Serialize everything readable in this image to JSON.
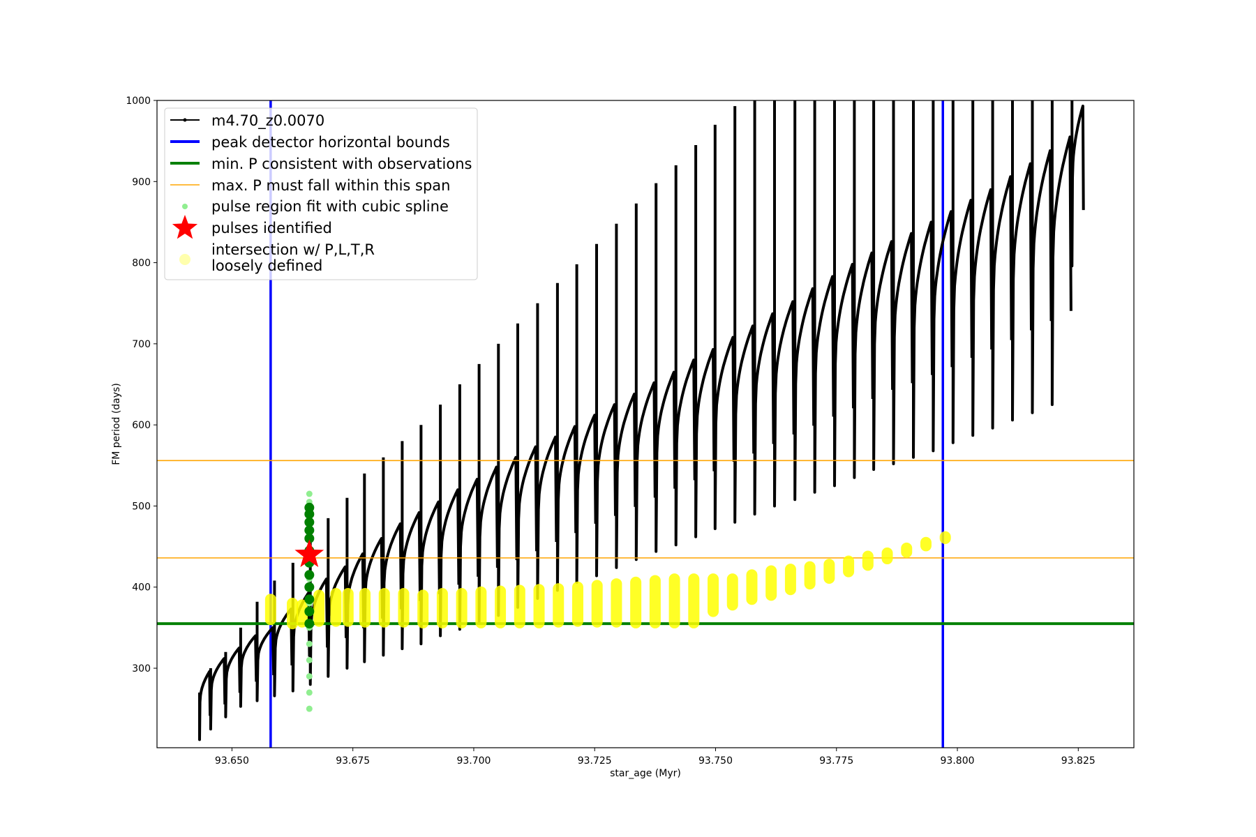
{
  "chart_data": {
    "type": "line",
    "xlabel": "star_age (Myr)",
    "ylabel": "FM period (days)",
    "xlim": [
      93.6345,
      93.8365
    ],
    "ylim": [
      202,
      1000
    ],
    "xticks": [
      93.65,
      93.675,
      93.7,
      93.725,
      93.75,
      93.775,
      93.8,
      93.825
    ],
    "xtick_labels": [
      "93.650",
      "93.675",
      "93.700",
      "93.725",
      "93.750",
      "93.775",
      "93.800",
      "93.825"
    ],
    "yticks": [
      300,
      400,
      500,
      600,
      700,
      800,
      900,
      1000
    ],
    "ytick_labels": [
      "300",
      "400",
      "500",
      "600",
      "700",
      "800",
      "900",
      "1000"
    ],
    "grid": false,
    "legend_position": "top-left",
    "series_model": {
      "name": "m4.70_z0.0070",
      "color": "#000000",
      "pulse_start_ages": [
        93.6433,
        93.6456,
        93.6487,
        93.6518,
        93.6552,
        93.6588,
        93.6626,
        93.6662,
        93.6699,
        93.6738,
        93.6774,
        93.6813,
        93.6852,
        93.6891,
        93.6931,
        93.6971,
        93.7011,
        93.7051,
        93.7091,
        93.7132,
        93.7173,
        93.7213,
        93.7254,
        93.7295,
        93.7336,
        93.7377,
        93.7418,
        93.7459,
        93.7499,
        93.754,
        93.7581,
        93.7622,
        93.7664,
        93.7705,
        93.7746,
        93.7787,
        93.7827,
        93.7868,
        93.7909,
        93.795,
        93.7991,
        93.8032,
        93.8073,
        93.8114,
        93.8155,
        93.8196,
        93.8237
      ],
      "pulse_peak_periods": [
        296,
        312,
        325,
        340,
        350,
        373,
        393,
        410,
        425,
        441,
        460,
        478,
        492,
        505,
        520,
        533,
        548,
        560,
        573,
        585,
        598,
        612,
        625,
        638,
        652,
        665,
        680,
        693,
        708,
        722,
        737,
        752,
        768,
        783,
        798,
        812,
        826,
        836,
        850,
        863,
        877,
        890,
        906,
        922,
        938,
        955,
        993
      ],
      "spike_top_periods": [
        270,
        300,
        320,
        350,
        382,
        408,
        430,
        470,
        485,
        510,
        540,
        560,
        580,
        600,
        625,
        650,
        675,
        700,
        725,
        750,
        775,
        798,
        823,
        848,
        873,
        898,
        920,
        945,
        970,
        993,
        1000,
        1000,
        1000,
        1000,
        1000,
        1000,
        1000,
        1000,
        1000,
        1000,
        1000,
        1000,
        1000,
        1000,
        1000,
        1000,
        1000
      ],
      "pulse_min_periods": [
        212,
        225,
        240,
        253,
        260,
        266,
        272,
        280,
        290,
        300,
        308,
        316,
        324,
        330,
        340,
        348,
        357,
        365,
        375,
        386,
        396,
        406,
        414,
        424,
        434,
        444,
        452,
        462,
        472,
        480,
        490,
        500,
        508,
        517,
        525,
        535,
        545,
        552,
        560,
        568,
        578,
        587,
        596,
        606,
        615,
        625,
        796
      ]
    },
    "peak_detector_bounds": {
      "x": [
        93.658,
        93.797
      ],
      "color": "#0000ff",
      "label": "peak detector horizontal bounds"
    },
    "min_period": {
      "y": 355,
      "color": "#008000",
      "label": "min. P consistent with observations"
    },
    "max_period_span": {
      "y": [
        436,
        556
      ],
      "color": "#ffa500",
      "label": "max. P must fall within this span"
    },
    "pulse_region_spline": {
      "label": "pulse region fit with cubic spline",
      "color": "#90ee90",
      "x": [
        93.666,
        93.666,
        93.666,
        93.666,
        93.666,
        93.666,
        93.666,
        93.666,
        93.666,
        93.666,
        93.666,
        93.666,
        93.666,
        93.666
      ],
      "y": [
        250,
        270,
        290,
        310,
        330,
        350,
        380,
        410,
        440,
        460,
        480,
        495,
        505,
        515
      ]
    },
    "pulse_region_dark": {
      "color": "#008000",
      "x": [
        93.666,
        93.666,
        93.666,
        93.666,
        93.666,
        93.666,
        93.666,
        93.666,
        93.666,
        93.666,
        93.666,
        93.666
      ],
      "y": [
        355,
        370,
        385,
        400,
        415,
        430,
        445,
        460,
        470,
        480,
        490,
        498
      ]
    },
    "pulses_identified": {
      "label": "pulses identified",
      "color": "#ff0000",
      "x": [
        93.666
      ],
      "y": [
        440
      ]
    },
    "intersection_points": {
      "label": "intersection w/ P,L,T,R\nloosely defined",
      "color": "#ffff00",
      "x": [
        93.658,
        93.6625,
        93.6645,
        93.668,
        93.6715,
        93.674,
        93.6775,
        93.6815,
        93.6855,
        93.6895,
        93.6935,
        93.6975,
        93.7015,
        93.7055,
        93.7095,
        93.7135,
        93.7175,
        93.7215,
        93.7255,
        93.7295,
        93.7335,
        93.7375,
        93.7415,
        93.7455,
        93.7495,
        93.7535,
        93.7575,
        93.7615,
        93.7655,
        93.7695,
        93.7735,
        93.7775,
        93.7815,
        93.7855,
        93.7895,
        93.7935,
        93.7975
      ],
      "y_low": [
        360,
        355,
        357,
        358,
        358,
        358,
        357,
        357,
        357,
        356,
        356,
        356,
        356,
        356,
        356,
        356,
        357,
        358,
        357,
        357,
        356,
        356,
        356,
        356,
        370,
        378,
        385,
        390,
        397,
        404,
        411,
        419,
        427,
        435,
        443,
        451,
        460
      ],
      "y_high": [
        385,
        380,
        378,
        390,
        392,
        392,
        392,
        392,
        392,
        390,
        392,
        392,
        394,
        395,
        396,
        397,
        398,
        400,
        402,
        404,
        406,
        408,
        410,
        410,
        410,
        410,
        415,
        420,
        422,
        425,
        428,
        432,
        438,
        442,
        448,
        455,
        462
      ]
    }
  },
  "legend": {
    "entries": [
      {
        "label": "m4.70_z0.0070",
        "symbol": "line-dot",
        "color": "#000000"
      },
      {
        "label": "peak detector horizontal bounds",
        "symbol": "thick-line",
        "color": "#0000ff"
      },
      {
        "label": "min. P consistent with observations",
        "symbol": "thick-line",
        "color": "#008000"
      },
      {
        "label": "max. P must fall within this span",
        "symbol": "thin-line",
        "color": "#ffa500"
      },
      {
        "label": "pulse region fit with cubic spline",
        "symbol": "dot",
        "color": "#90ee90"
      },
      {
        "label": "pulses identified",
        "symbol": "star",
        "color": "#ff0000"
      },
      {
        "label_line1": "intersection w/ P,L,T,R",
        "label_line2": "loosely defined",
        "symbol": "big-dot",
        "color": "#ffff99"
      }
    ]
  }
}
